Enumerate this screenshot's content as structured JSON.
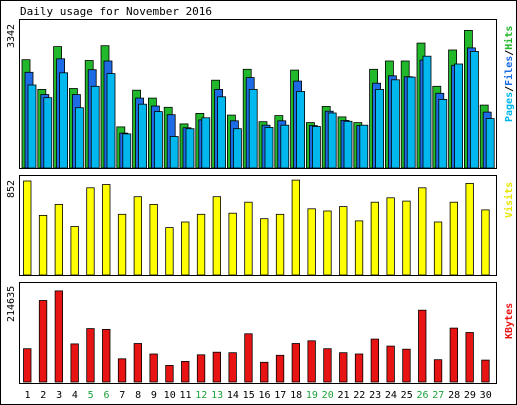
{
  "title": "Daily usage for November 2016",
  "colors": {
    "background": "#ffffff",
    "frame": "#000000",
    "hits": "#22b82b",
    "files": "#1d6ce6",
    "pages": "#00b7ee",
    "visits": "#ffff00",
    "kbytes": "#e81414",
    "weekend_label": "#1aa23a",
    "weekday_label": "#000000"
  },
  "chart_data": [
    {
      "type": "bar",
      "panel": "hits-files-pages",
      "ylabel_max": "3342",
      "legend": {
        "pages": "Pages",
        "sep1": "/",
        "files": "Files",
        "sep2": "/",
        "hits": "Hits"
      },
      "ylim": [
        0,
        3342
      ],
      "categories": [
        "1",
        "2",
        "3",
        "4",
        "5",
        "6",
        "7",
        "8",
        "9",
        "10",
        "11",
        "12",
        "13",
        "14",
        "15",
        "16",
        "17",
        "18",
        "19",
        "20",
        "21",
        "22",
        "23",
        "24",
        "25",
        "26",
        "27",
        "28",
        "29",
        "30"
      ],
      "series": [
        {
          "name": "Hits",
          "values": [
            2480,
            1800,
            2780,
            1820,
            2460,
            2800,
            940,
            1780,
            1600,
            1390,
            1010,
            1250,
            2010,
            1210,
            2260,
            1060,
            1200,
            2240,
            1040,
            1410,
            1170,
            1040,
            2260,
            2450,
            2450,
            2860,
            1870,
            2700,
            3150,
            1440
          ]
        },
        {
          "name": "Files",
          "values": [
            2190,
            1680,
            2500,
            1680,
            2250,
            2450,
            800,
            1600,
            1420,
            1220,
            920,
            1100,
            1800,
            1080,
            2070,
            980,
            1080,
            1990,
            970,
            1300,
            1090,
            970,
            1940,
            2110,
            2090,
            2470,
            1710,
            2350,
            2750,
            1280
          ]
        },
        {
          "name": "Pages",
          "values": [
            1900,
            1610,
            2180,
            1380,
            1870,
            2160,
            780,
            1460,
            1290,
            720,
            900,
            1150,
            1630,
            900,
            1800,
            930,
            980,
            1750,
            950,
            1260,
            1070,
            980,
            1800,
            2020,
            2080,
            2560,
            1570,
            2380,
            2670,
            1130
          ]
        }
      ]
    },
    {
      "type": "bar",
      "panel": "visits",
      "ylabel_max": "852",
      "legend": {
        "visits": "Visits"
      },
      "ylim": [
        0,
        852
      ],
      "categories": [
        "1",
        "2",
        "3",
        "4",
        "5",
        "6",
        "7",
        "8",
        "9",
        "10",
        "11",
        "12",
        "13",
        "14",
        "15",
        "16",
        "17",
        "18",
        "19",
        "20",
        "21",
        "22",
        "23",
        "24",
        "25",
        "26",
        "27",
        "28",
        "29",
        "30"
      ],
      "series": [
        {
          "name": "Visits",
          "values": [
            852,
            540,
            640,
            440,
            790,
            820,
            550,
            710,
            640,
            430,
            480,
            550,
            710,
            560,
            660,
            510,
            550,
            860,
            600,
            580,
            620,
            490,
            660,
            700,
            670,
            790,
            480,
            660,
            830,
            590
          ]
        }
      ]
    },
    {
      "type": "bar",
      "panel": "kbytes",
      "ylabel_max": "214635",
      "legend": {
        "kbytes": "KBytes"
      },
      "ylim": [
        0,
        214635
      ],
      "categories": [
        "1",
        "2",
        "3",
        "4",
        "5",
        "6",
        "7",
        "8",
        "9",
        "10",
        "11",
        "12",
        "13",
        "14",
        "15",
        "16",
        "17",
        "18",
        "19",
        "20",
        "21",
        "22",
        "23",
        "24",
        "25",
        "26",
        "27",
        "28",
        "29",
        "30"
      ],
      "series": [
        {
          "name": "KBytes",
          "values": [
            76000,
            186000,
            208000,
            87000,
            122000,
            120000,
            53000,
            88000,
            64000,
            38000,
            47000,
            62000,
            68000,
            67000,
            110000,
            45000,
            61000,
            88000,
            94000,
            76000,
            67000,
            64000,
            98000,
            82000,
            75000,
            164000,
            51000,
            123000,
            113000,
            50000
          ]
        }
      ]
    }
  ],
  "x_axis": {
    "labels": [
      "1",
      "2",
      "3",
      "4",
      "5",
      "6",
      "7",
      "8",
      "9",
      "10",
      "11",
      "12",
      "13",
      "14",
      "15",
      "16",
      "17",
      "18",
      "19",
      "20",
      "21",
      "22",
      "23",
      "24",
      "25",
      "26",
      "27",
      "28",
      "29",
      "30"
    ],
    "weekend": [
      false,
      false,
      false,
      false,
      true,
      true,
      false,
      false,
      false,
      false,
      false,
      true,
      true,
      false,
      false,
      false,
      false,
      false,
      true,
      true,
      false,
      false,
      false,
      false,
      false,
      true,
      true,
      false,
      false,
      false
    ]
  }
}
